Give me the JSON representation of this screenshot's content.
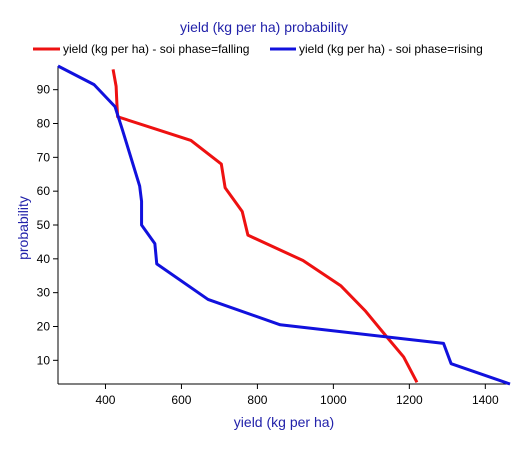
{
  "chart_data": {
    "type": "line",
    "title": "yield (kg per ha) probability",
    "xlabel": "yield (kg per ha)",
    "ylabel": "probability",
    "xlim": [
      275,
      1465
    ],
    "ylim": [
      3,
      97
    ],
    "xticks": [
      400,
      600,
      800,
      1000,
      1200,
      1400
    ],
    "yticks": [
      10,
      20,
      30,
      40,
      50,
      60,
      70,
      80,
      90
    ],
    "grid": false,
    "legend_position": "top",
    "title_color": "#2222aa",
    "label_color": "#2222aa",
    "series": [
      {
        "name": "yield (kg per ha) - soi phase=falling",
        "color": "#ee1111",
        "points": [
          [
            420,
            96
          ],
          [
            428,
            91
          ],
          [
            430,
            86
          ],
          [
            432,
            82
          ],
          [
            625,
            75
          ],
          [
            705,
            68
          ],
          [
            715,
            61
          ],
          [
            760,
            54
          ],
          [
            775,
            47
          ],
          [
            920,
            39.5
          ],
          [
            1020,
            32
          ],
          [
            1085,
            24.5
          ],
          [
            1140,
            17
          ],
          [
            1185,
            11
          ],
          [
            1220,
            3.5
          ]
        ]
      },
      {
        "name": "yield (kg per ha) - soi phase=rising",
        "color": "#1111dd",
        "points": [
          [
            275,
            97
          ],
          [
            370,
            91.5
          ],
          [
            425,
            85
          ],
          [
            445,
            78
          ],
          [
            490,
            61.5
          ],
          [
            495,
            57
          ],
          [
            495,
            50
          ],
          [
            530,
            44.5
          ],
          [
            535,
            38.5
          ],
          [
            670,
            28
          ],
          [
            860,
            20.5
          ],
          [
            1290,
            15
          ],
          [
            1310,
            9
          ],
          [
            1465,
            3
          ]
        ]
      }
    ]
  }
}
